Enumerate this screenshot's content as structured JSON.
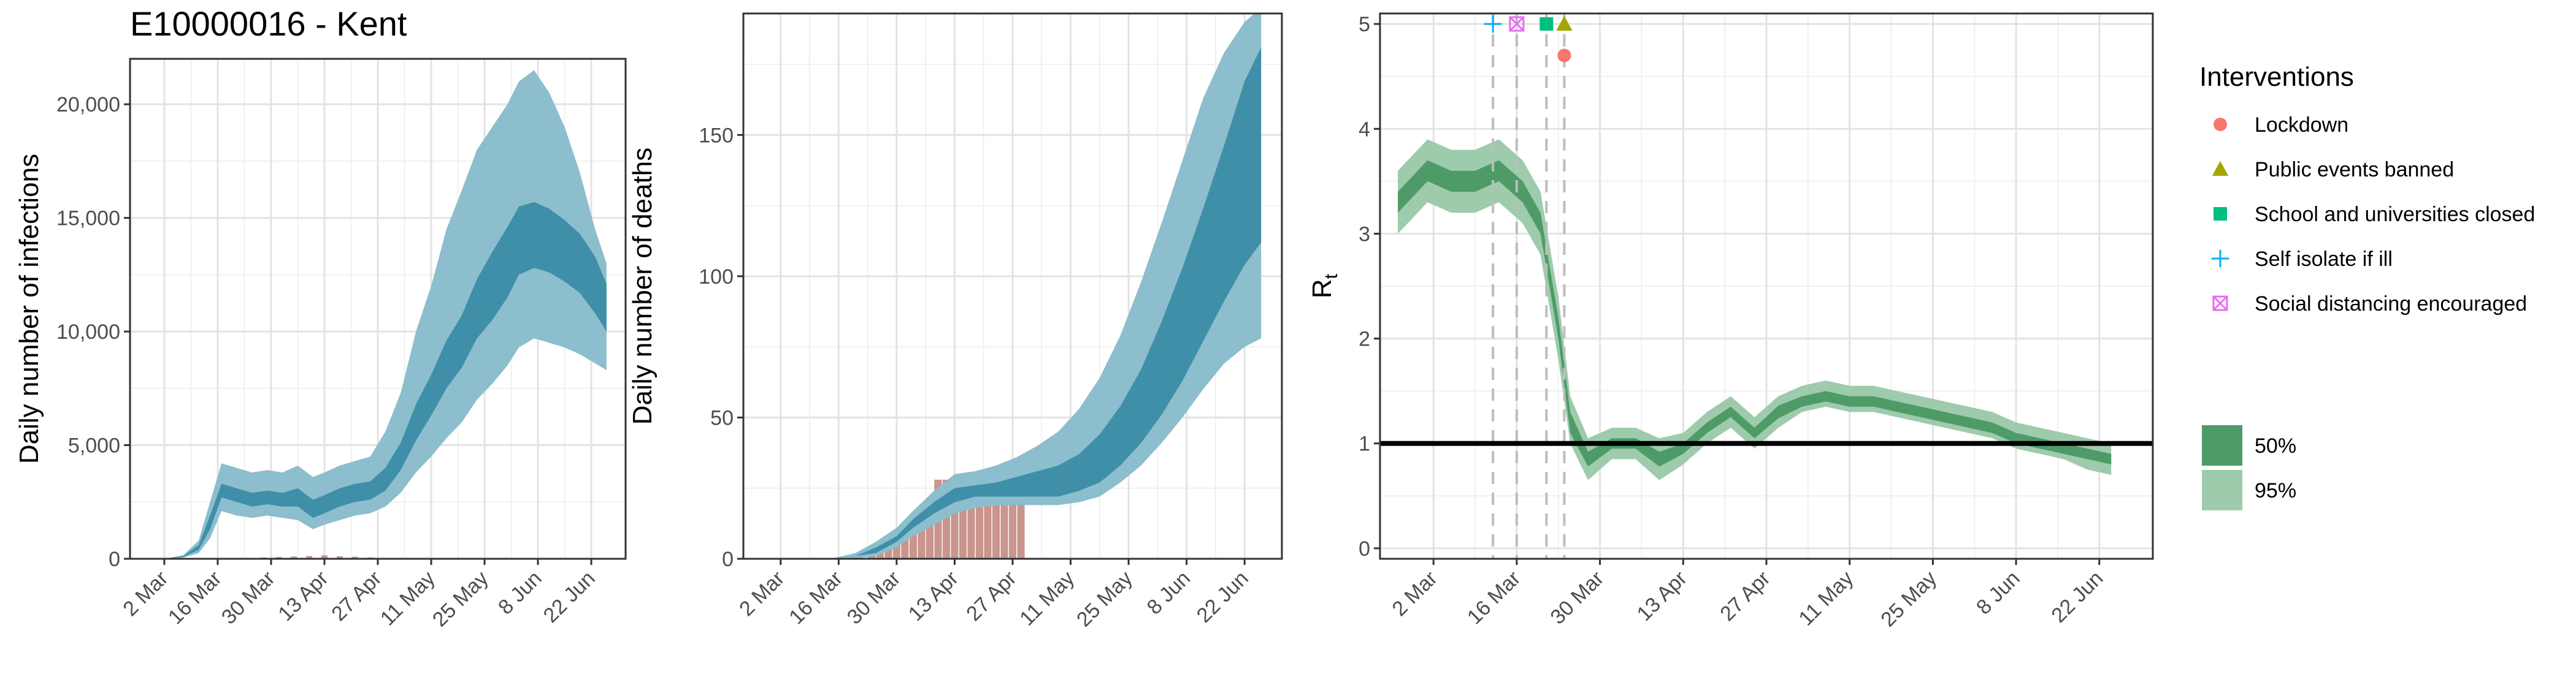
{
  "title": "E10000016 - Kent",
  "x_tick_labels": [
    "2 Mar",
    "16 Mar",
    "30 Mar",
    "13 Apr",
    "27 Apr",
    "11 May",
    "25 May",
    "8 Jun",
    "22 Jun"
  ],
  "colors": {
    "infections_95": "#8cbecd",
    "infections_50": "#3f8fa9",
    "deaths_bar": "#c9958d",
    "rt_95": "#9dcbac",
    "rt_50": "#4e9b68",
    "lockdown": "#f8766d",
    "public_events": "#a3a500",
    "school": "#00bf7d",
    "self_isolate": "#00b0f6",
    "social_distancing": "#e76bf3"
  },
  "legend": {
    "interventions_title": "Interventions",
    "interventions": [
      {
        "label": "Lockdown",
        "icon": "circle-icon"
      },
      {
        "label": "Public events banned",
        "icon": "triangle-icon"
      },
      {
        "label": "School and universities closed",
        "icon": "square-icon"
      },
      {
        "label": "Self isolate if ill",
        "icon": "plus-icon"
      },
      {
        "label": "Social distancing encouraged",
        "icon": "boxed-x-icon"
      }
    ],
    "ci": [
      {
        "label": "50%"
      },
      {
        "label": "95%"
      }
    ]
  },
  "chart_data": [
    {
      "type": "area",
      "name": "infections",
      "ylabel": "Daily number of infections",
      "xlim": [
        "2020-02-22",
        "2020-07-01"
      ],
      "ylim": [
        0,
        22000
      ],
      "yticks": [
        0,
        5000,
        10000,
        15000,
        20000
      ],
      "ytick_labels": [
        "0",
        "5,000",
        "10,000",
        "15,000",
        "20,000"
      ],
      "grid": true,
      "x": [
        "2020-02-25",
        "2020-03-02",
        "2020-03-07",
        "2020-03-11",
        "2020-03-14",
        "2020-03-17",
        "2020-03-21",
        "2020-03-25",
        "2020-03-29",
        "2020-04-02",
        "2020-04-06",
        "2020-04-10",
        "2020-04-13",
        "2020-04-17",
        "2020-04-21",
        "2020-04-25",
        "2020-04-29",
        "2020-05-03",
        "2020-05-07",
        "2020-05-11",
        "2020-05-15",
        "2020-05-19",
        "2020-05-23",
        "2020-05-27",
        "2020-05-31",
        "2020-06-03",
        "2020-06-07",
        "2020-06-11",
        "2020-06-15",
        "2020-06-19",
        "2020-06-23",
        "2020-06-26"
      ],
      "median": [
        0,
        0,
        100,
        500,
        1600,
        3000,
        2800,
        2600,
        2700,
        2600,
        2700,
        2200,
        2400,
        2700,
        2900,
        3000,
        3500,
        4500,
        6000,
        7200,
        8500,
        9500,
        11000,
        12000,
        13000,
        14000,
        14200,
        14000,
        13500,
        13000,
        12000,
        11000
      ],
      "ci50_low": [
        0,
        0,
        80,
        400,
        1300,
        2700,
        2500,
        2300,
        2400,
        2300,
        2300,
        1800,
        2000,
        2300,
        2500,
        2600,
        3000,
        3900,
        5200,
        6300,
        7500,
        8400,
        9700,
        10500,
        11500,
        12500,
        12800,
        12600,
        12200,
        11700,
        10800,
        10000
      ],
      "ci50_high": [
        0,
        0,
        120,
        600,
        1900,
        3300,
        3100,
        2900,
        3000,
        2900,
        3100,
        2600,
        2800,
        3100,
        3300,
        3400,
        4000,
        5100,
        6800,
        8100,
        9600,
        10700,
        12300,
        13500,
        14600,
        15500,
        15700,
        15400,
        14900,
        14300,
        13300,
        12100
      ],
      "ci95_low": [
        0,
        0,
        50,
        250,
        900,
        2100,
        1900,
        1800,
        1900,
        1800,
        1700,
        1300,
        1500,
        1700,
        1900,
        2000,
        2300,
        2900,
        3800,
        4500,
        5300,
        6000,
        7000,
        7700,
        8500,
        9300,
        9700,
        9500,
        9300,
        9000,
        8600,
        8300
      ],
      "ci95_high": [
        0,
        0,
        160,
        800,
        2500,
        4200,
        4000,
        3800,
        3900,
        3800,
        4100,
        3600,
        3800,
        4100,
        4300,
        4500,
        5600,
        7300,
        10000,
        12000,
        14500,
        16200,
        18000,
        19000,
        20000,
        21000,
        21500,
        20500,
        19000,
        17000,
        14500,
        13000
      ],
      "reported": [
        {
          "x": "2020-03-16",
          "y": 10
        },
        {
          "x": "2020-03-20",
          "y": 25
        },
        {
          "x": "2020-03-24",
          "y": 40
        },
        {
          "x": "2020-03-28",
          "y": 60
        },
        {
          "x": "2020-04-01",
          "y": 80
        },
        {
          "x": "2020-04-05",
          "y": 100
        },
        {
          "x": "2020-04-09",
          "y": 120
        },
        {
          "x": "2020-04-13",
          "y": 150
        },
        {
          "x": "2020-04-17",
          "y": 110
        },
        {
          "x": "2020-04-21",
          "y": 90
        },
        {
          "x": "2020-04-25",
          "y": 60
        }
      ]
    },
    {
      "type": "area",
      "name": "deaths",
      "ylabel": "Daily number of deaths",
      "xlim": [
        "2020-02-22",
        "2020-07-01"
      ],
      "ylim": [
        0,
        193
      ],
      "yticks": [
        0,
        50,
        100,
        150
      ],
      "ytick_labels": [
        "0",
        "50",
        "100",
        "150"
      ],
      "grid": true,
      "x": [
        "2020-02-25",
        "2020-03-14",
        "2020-03-20",
        "2020-03-25",
        "2020-03-30",
        "2020-04-03",
        "2020-04-08",
        "2020-04-13",
        "2020-04-18",
        "2020-04-23",
        "2020-04-28",
        "2020-05-03",
        "2020-05-08",
        "2020-05-13",
        "2020-05-18",
        "2020-05-23",
        "2020-05-28",
        "2020-06-02",
        "2020-06-07",
        "2020-06-12",
        "2020-06-17",
        "2020-06-22",
        "2020-06-26"
      ],
      "median": [
        0,
        0,
        1,
        3,
        7,
        12,
        18,
        22,
        24,
        25,
        26,
        27,
        28,
        31,
        36,
        44,
        55,
        69,
        85,
        103,
        122,
        141,
        152
      ],
      "ci50_low": [
        0,
        0,
        1,
        2,
        6,
        11,
        16,
        20,
        22,
        22,
        22,
        22,
        22,
        24,
        27,
        33,
        41,
        51,
        63,
        77,
        91,
        104,
        112
      ],
      "ci50_high": [
        0,
        0,
        1,
        4,
        8,
        14,
        20,
        25,
        26,
        27,
        29,
        31,
        33,
        37,
        44,
        54,
        67,
        84,
        103,
        124,
        146,
        169,
        181
      ],
      "ci95_low": [
        0,
        0,
        0,
        1,
        4,
        8,
        12,
        16,
        18,
        19,
        19,
        19,
        19,
        20,
        22,
        27,
        33,
        41,
        50,
        60,
        69,
        75,
        78
      ],
      "ci95_high": [
        0,
        0,
        2,
        6,
        11,
        17,
        24,
        30,
        31,
        33,
        36,
        40,
        45,
        53,
        64,
        79,
        98,
        119,
        141,
        163,
        179,
        190,
        195
      ],
      "bars": [
        {
          "x": "2020-03-24",
          "y": 1
        },
        {
          "x": "2020-03-26",
          "y": 2
        },
        {
          "x": "2020-03-28",
          "y": 4
        },
        {
          "x": "2020-03-30",
          "y": 6
        },
        {
          "x": "2020-04-01",
          "y": 8
        },
        {
          "x": "2020-04-03",
          "y": 10
        },
        {
          "x": "2020-04-05",
          "y": 12
        },
        {
          "x": "2020-04-07",
          "y": 12
        },
        {
          "x": "2020-04-09",
          "y": 28
        },
        {
          "x": "2020-04-11",
          "y": 28
        },
        {
          "x": "2020-04-13",
          "y": 27
        },
        {
          "x": "2020-04-15",
          "y": 25
        },
        {
          "x": "2020-04-17",
          "y": 25
        },
        {
          "x": "2020-04-19",
          "y": 22
        },
        {
          "x": "2020-04-21",
          "y": 22
        },
        {
          "x": "2020-04-23",
          "y": 22
        },
        {
          "x": "2020-04-25",
          "y": 22
        },
        {
          "x": "2020-04-27",
          "y": 22
        },
        {
          "x": "2020-04-29",
          "y": 22
        }
      ]
    },
    {
      "type": "area",
      "name": "rt",
      "ylabel": "R",
      "ylabel_subscript": "t",
      "xlim": [
        "2020-02-22",
        "2020-07-01"
      ],
      "ylim": [
        -0.1,
        5.1
      ],
      "yticks": [
        0,
        1,
        2,
        3,
        4,
        5
      ],
      "ytick_labels": [
        "0",
        "1",
        "2",
        "3",
        "4",
        "5"
      ],
      "grid": true,
      "reference_line": 1,
      "x": [
        "2020-02-25",
        "2020-03-01",
        "2020-03-05",
        "2020-03-09",
        "2020-03-13",
        "2020-03-17",
        "2020-03-20",
        "2020-03-23",
        "2020-03-25",
        "2020-03-28",
        "2020-04-01",
        "2020-04-05",
        "2020-04-09",
        "2020-04-13",
        "2020-04-17",
        "2020-04-21",
        "2020-04-25",
        "2020-04-29",
        "2020-05-03",
        "2020-05-07",
        "2020-05-11",
        "2020-05-15",
        "2020-05-19",
        "2020-05-23",
        "2020-05-27",
        "2020-05-31",
        "2020-06-04",
        "2020-06-08",
        "2020-06-12",
        "2020-06-16",
        "2020-06-20",
        "2020-06-24"
      ],
      "median": [
        3.3,
        3.6,
        3.5,
        3.5,
        3.6,
        3.4,
        3.1,
        2.1,
        1.2,
        0.85,
        1.0,
        1.0,
        0.85,
        0.95,
        1.15,
        1.3,
        1.1,
        1.3,
        1.4,
        1.45,
        1.4,
        1.4,
        1.35,
        1.3,
        1.25,
        1.2,
        1.15,
        1.05,
        1.0,
        0.95,
        0.9,
        0.85
      ],
      "ci50_low": [
        3.2,
        3.5,
        3.4,
        3.4,
        3.5,
        3.3,
        3.0,
        2.0,
        1.1,
        0.78,
        0.95,
        0.95,
        0.78,
        0.9,
        1.1,
        1.25,
        1.05,
        1.24,
        1.35,
        1.4,
        1.35,
        1.35,
        1.3,
        1.25,
        1.2,
        1.15,
        1.1,
        1.0,
        0.95,
        0.9,
        0.85,
        0.8
      ],
      "ci50_high": [
        3.4,
        3.7,
        3.6,
        3.6,
        3.7,
        3.5,
        3.2,
        2.2,
        1.3,
        0.92,
        1.05,
        1.05,
        0.92,
        1.0,
        1.2,
        1.35,
        1.15,
        1.36,
        1.45,
        1.5,
        1.45,
        1.45,
        1.4,
        1.35,
        1.3,
        1.25,
        1.2,
        1.1,
        1.05,
        1.0,
        0.95,
        0.9
      ],
      "ci95_low": [
        3.0,
        3.3,
        3.2,
        3.2,
        3.3,
        3.1,
        2.8,
        1.8,
        1.0,
        0.65,
        0.85,
        0.85,
        0.65,
        0.8,
        1.0,
        1.15,
        0.95,
        1.15,
        1.3,
        1.35,
        1.3,
        1.3,
        1.25,
        1.2,
        1.15,
        1.1,
        1.05,
        0.95,
        0.9,
        0.85,
        0.75,
        0.7
      ],
      "ci95_high": [
        3.6,
        3.9,
        3.8,
        3.8,
        3.9,
        3.7,
        3.4,
        2.4,
        1.45,
        1.05,
        1.15,
        1.15,
        1.05,
        1.1,
        1.3,
        1.45,
        1.25,
        1.45,
        1.55,
        1.6,
        1.55,
        1.55,
        1.5,
        1.45,
        1.4,
        1.35,
        1.3,
        1.2,
        1.15,
        1.1,
        1.05,
        1.0
      ],
      "interventions": [
        {
          "label": "Self isolate if ill",
          "x": "2020-03-12",
          "y": 5.0,
          "marker": "plus"
        },
        {
          "label": "Social distancing encouraged",
          "x": "2020-03-16",
          "y": 5.0,
          "marker": "boxed-x"
        },
        {
          "label": "School and universities closed",
          "x": "2020-03-21",
          "y": 5.0,
          "marker": "square"
        },
        {
          "label": "Public events banned",
          "x": "2020-03-24",
          "y": 5.0,
          "marker": "triangle"
        },
        {
          "label": "Lockdown",
          "x": "2020-03-24",
          "y": 4.7,
          "marker": "circle"
        }
      ]
    }
  ]
}
